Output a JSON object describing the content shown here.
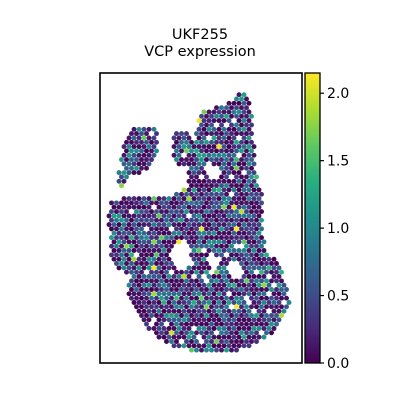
{
  "chart_data": {
    "type": "scatter",
    "subtype": "spatial-hex-spots",
    "title": [
      "UKF255",
      "VCP expression"
    ],
    "colormap": "viridis",
    "color_range": [
      0.0,
      2.15
    ],
    "colorbar": {
      "ticks": [
        0.0,
        0.5,
        1.0,
        1.5,
        2.0
      ],
      "tick_labels": [
        "0.0",
        "0.5",
        "1.0",
        "1.5",
        "2.0"
      ]
    },
    "axes": {
      "visible_ticks": false,
      "frame": true
    },
    "mean_level": 0.45,
    "bright_spot_count": 22
  }
}
